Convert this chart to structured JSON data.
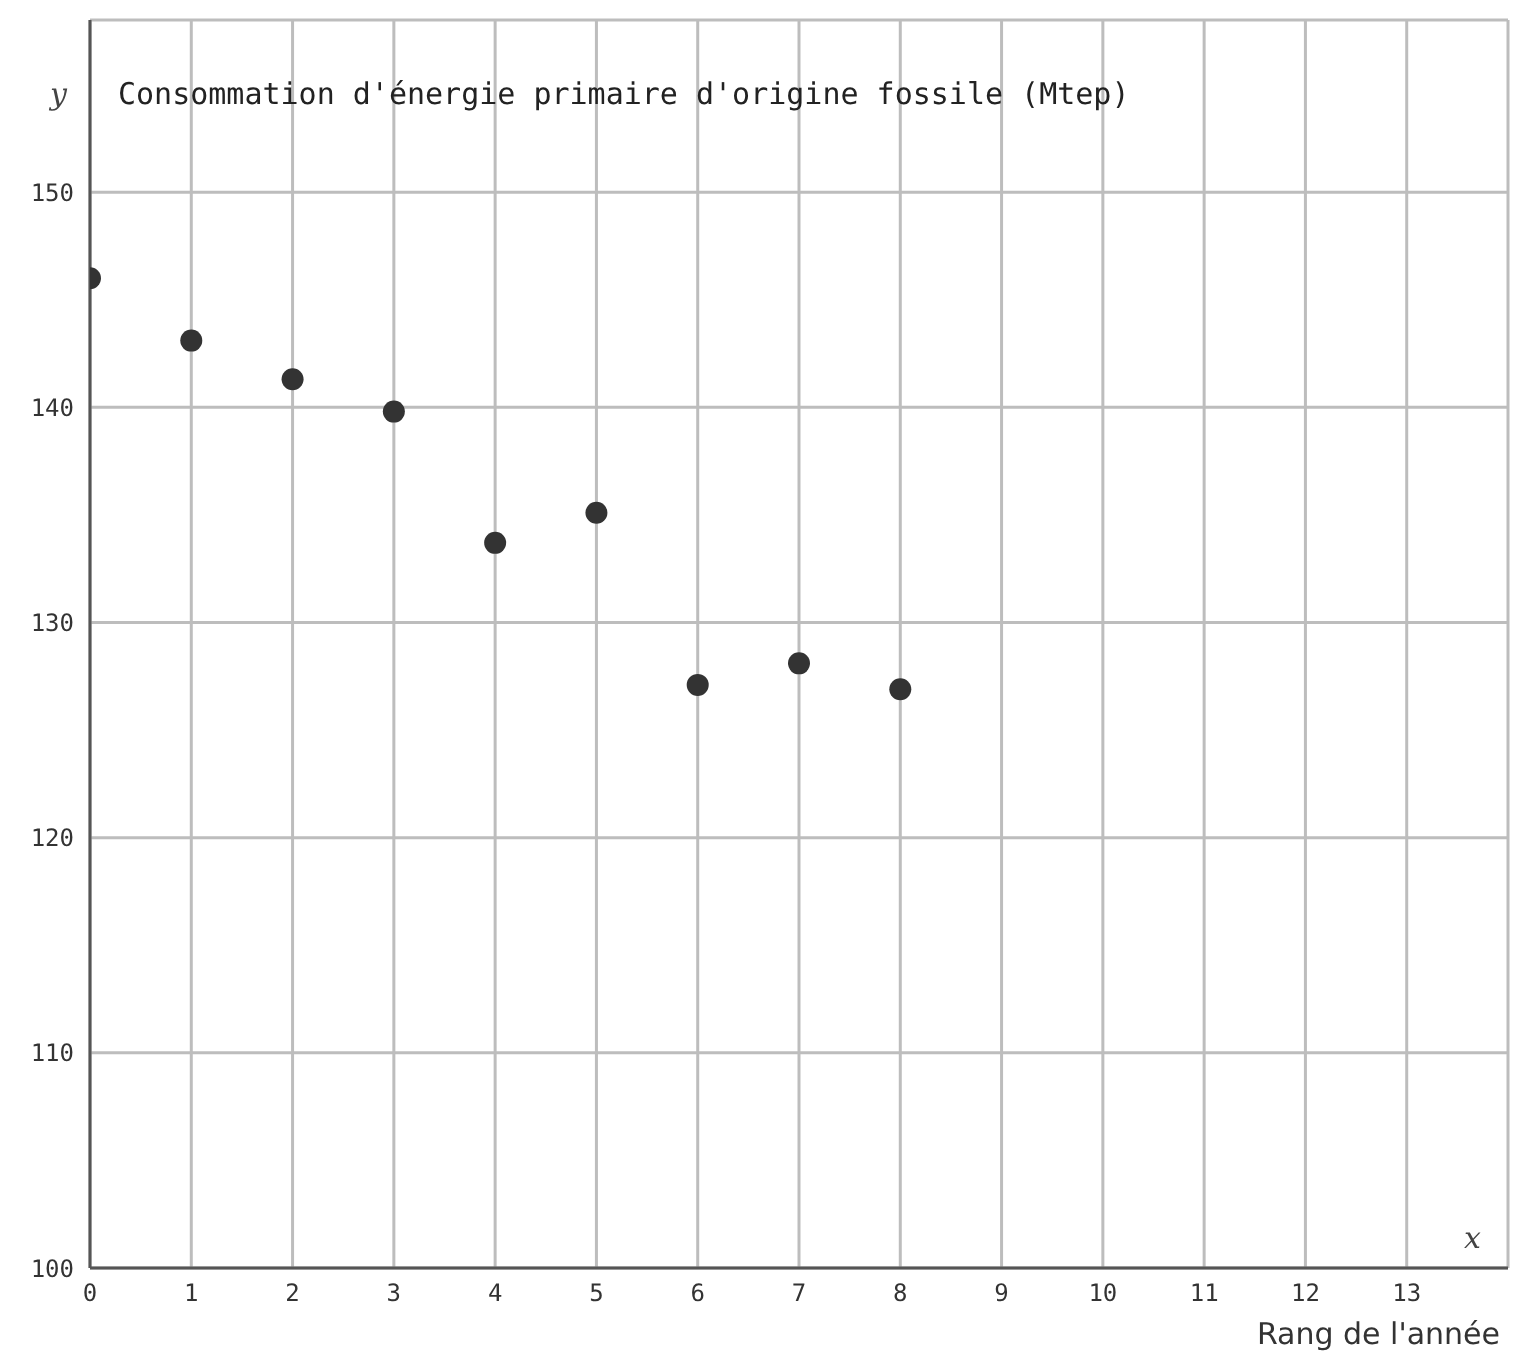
{
  "chart_data": {
    "type": "scatter",
    "title": "Consommation d'énergie primaire d'origine fossile (Mtep)",
    "xlabel": "Rang de l'année",
    "annotations": [
      "x",
      "y"
    ],
    "x": [
      0,
      1,
      2,
      3,
      4,
      5,
      6,
      7,
      8
    ],
    "series": [
      {
        "color": "#333333",
        "values": [
          146.0,
          143.1,
          141.3,
          139.8,
          133.7,
          135.1,
          127.1,
          128.1,
          126.9
        ]
      }
    ],
    "xlim": [
      0,
      14
    ],
    "xticks": [
      0,
      1,
      2,
      3,
      4,
      5,
      6,
      7,
      8,
      9,
      10,
      11,
      12,
      13
    ],
    "ylim": [
      100,
      158
    ],
    "yticks": [
      100,
      110,
      120,
      130,
      140,
      150
    ],
    "grid": true,
    "marker": "circle"
  }
}
